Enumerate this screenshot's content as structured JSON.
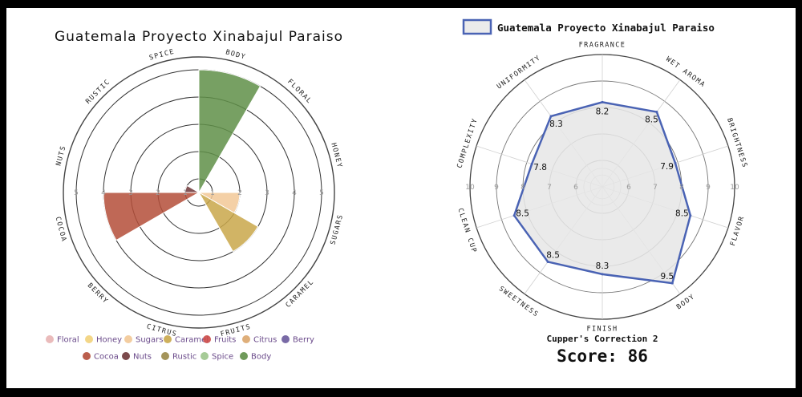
{
  "chart_data": [
    {
      "type": "polar_area",
      "title": "Guatemala Proyecto Xinabajul Paraiso",
      "categories": [
        "Body",
        "Floral",
        "Honey",
        "Sugars",
        "Caramel",
        "Fruits",
        "Citrus",
        "Berry",
        "Cocoa",
        "Nuts",
        "Rustic",
        "Spice"
      ],
      "values": [
        5,
        0,
        0,
        2,
        3,
        0,
        0,
        0,
        4,
        1,
        0,
        0
      ],
      "r_ticks": [
        "1",
        "2",
        "3",
        "4",
        "5"
      ],
      "rlim": [
        0,
        5
      ],
      "legend": [
        {
          "name": "Floral",
          "color": "#e8b4b4"
        },
        {
          "name": "Honey",
          "color": "#f2d27a"
        },
        {
          "name": "Sugars",
          "color": "#f2c896"
        },
        {
          "name": "Caramel",
          "color": "#c9a74a"
        },
        {
          "name": "Fruits",
          "color": "#cc4a48"
        },
        {
          "name": "Citrus",
          "color": "#dba66b"
        },
        {
          "name": "Berry",
          "color": "#6a5a9c"
        },
        {
          "name": "Cocoa",
          "color": "#b44d38"
        },
        {
          "name": "Nuts",
          "color": "#6e3638"
        },
        {
          "name": "Rustic",
          "color": "#9a8848"
        },
        {
          "name": "Spice",
          "color": "#9cc58c"
        },
        {
          "name": "Body",
          "color": "#5f8f48"
        }
      ]
    },
    {
      "type": "radar",
      "series": [
        {
          "name": "Guatemala Proyecto Xinabajul Paraiso",
          "color": "#4a63b4"
        }
      ],
      "categories": [
        "FRAGRANCE",
        "WET AROMA",
        "BRIGHTNESS",
        "FLAVOR",
        "BODY",
        "FINISH",
        "SWEETNESS",
        "CLEAN CUP",
        "COMPLEXITY",
        "UNIFORMITY"
      ],
      "values": [
        8.2,
        8.5,
        7.9,
        8.5,
        9.5,
        8.3,
        8.5,
        8.5,
        7.8,
        8.3
      ],
      "value_labels": [
        "8.2",
        "8.5",
        "7.9",
        "8.5",
        "9.5",
        "8.3",
        "8.5",
        "8.5",
        "7.8",
        "8.3"
      ],
      "r_ticks": [
        "6",
        "7",
        "8",
        "9",
        "10"
      ],
      "rlim": [
        5,
        10
      ],
      "correction_text": "Cupper's Correction 2",
      "score_text": "Score: 86"
    }
  ]
}
